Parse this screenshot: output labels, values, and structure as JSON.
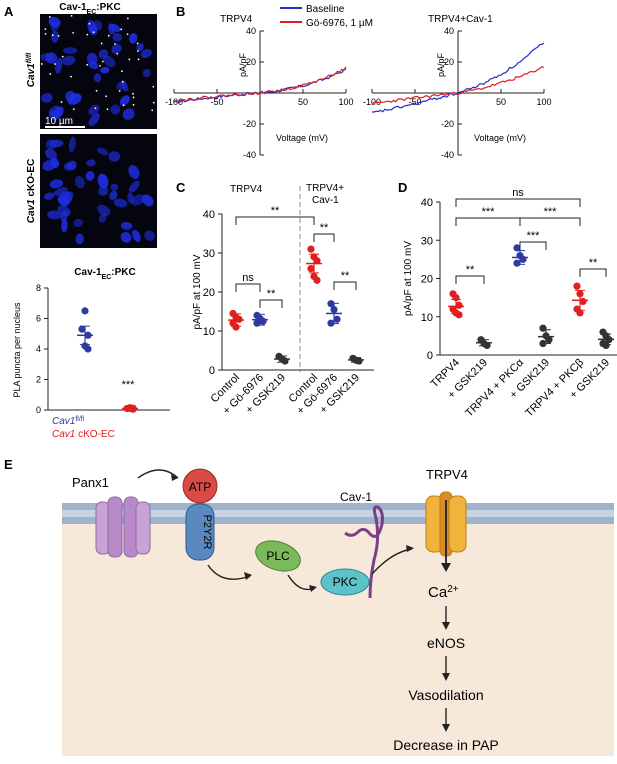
{
  "panels": {
    "A": {
      "letter": "A",
      "title_main": "Cav-1",
      "title_sub": "EC",
      "title_tail": ":PKC",
      "row1_label": "Cav1",
      "row1_sup": "fl/fl",
      "row2_label_italic": "Cav1",
      "row2_label_rest": " cKO-EC",
      "scale_bar": "10 µm",
      "plot": {
        "title_main": "Cav-1",
        "title_sub": "EC",
        "title_tail": ":PKC",
        "ylabel": "PLA puncta per nucleus",
        "yticks": [
          "0",
          "2",
          "4",
          "6",
          "8"
        ],
        "significance": "***",
        "legend": [
          {
            "italic": "Cav1",
            "sup": "fl/fl",
            "rest": "",
            "color": "#2e3a9f"
          },
          {
            "italic": "Cav1",
            "sup": "",
            "rest": " cKO-EC",
            "color": "#e02020"
          }
        ]
      }
    },
    "B": {
      "letter": "B",
      "legend": [
        {
          "name": "Baseline",
          "color": "#1f2fc8"
        },
        {
          "name": "Gö-6976, 1 µM",
          "color": "#e01e1e"
        }
      ],
      "left_title": "TRPV4",
      "right_title": "TRPV4+Cav-1",
      "ylabel": "pA/pF",
      "xlabel": "Voltage (mV)",
      "xticks": [
        "-100",
        "-50",
        "50",
        "100"
      ],
      "yticks": [
        "40",
        "20",
        "-20",
        "-40"
      ]
    },
    "C": {
      "letter": "C",
      "group1": "TRPV4",
      "group2_line1": "TRPV4+",
      "group2_line2": "Cav-1",
      "ylabel": "pA/pF at 100 mV",
      "yticks": [
        "0",
        "10",
        "20",
        "30",
        "40"
      ],
      "xlabels": [
        "Control",
        "+ Gö-6976",
        "+ GSK219",
        "Control",
        "+ Gö-6976",
        "+ GSK219"
      ],
      "sig": [
        "**",
        "ns",
        "**",
        "**",
        "**"
      ]
    },
    "D": {
      "letter": "D",
      "ylabel": "pA/pF at 100 mV",
      "yticks": [
        "0",
        "10",
        "20",
        "30",
        "40"
      ],
      "xlabels": [
        "TRPV4",
        "+ GSK219",
        "TRPV4 + PKCα",
        "+ GSK219",
        "TRPV4 + PKCβ",
        "+ GSK219"
      ],
      "sig": [
        "ns",
        "***",
        "***",
        "***",
        "**",
        "**"
      ]
    },
    "E": {
      "letter": "E",
      "labels": {
        "panx1": "Panx1",
        "atp": "ATP",
        "p2y2r": "P2Y2R",
        "plc": "PLC",
        "pkc": "PKC",
        "cav1": "Cav-1",
        "trpv4": "TRPV4",
        "ca": "Ca",
        "ca_sup": "2+",
        "enos": "eNOS",
        "vasodilation": "Vasodilation",
        "decrease": "Decrease in PAP"
      }
    }
  },
  "chart_data": [
    {
      "type": "scatter",
      "panel": "A",
      "categories": [
        "Cav1fl/fl",
        "Cav1 cKO-EC"
      ],
      "series": [
        {
          "values": [
            6.5,
            5.3,
            4.9,
            4.2,
            4.0
          ],
          "mean": 4.9,
          "sem": 0.6,
          "color": "#2e3a9f"
        },
        {
          "values": [
            0.15,
            0.1,
            0.05,
            0.1,
            0.12
          ],
          "mean": 0.1,
          "sem": 0.03,
          "color": "#e02020"
        }
      ],
      "ylabel": "PLA puncta per nucleus",
      "ylim": [
        0,
        8
      ]
    },
    {
      "type": "line",
      "panel": "B-left",
      "title": "TRPV4",
      "xlabel": "Voltage (mV)",
      "ylabel": "pA/pF",
      "xlim": [
        -100,
        100
      ],
      "ylim": [
        -40,
        40
      ],
      "series": [
        {
          "name": "Baseline",
          "x": [
            -100,
            -75,
            -50,
            -25,
            0,
            25,
            50,
            75,
            100
          ],
          "values": [
            -6,
            -4,
            -2.5,
            -1,
            0,
            1.8,
            4.5,
            9,
            15
          ]
        },
        {
          "name": "Gö-6976, 1 µM",
          "x": [
            -100,
            -75,
            -50,
            -25,
            0,
            25,
            50,
            75,
            100
          ],
          "values": [
            -5,
            -3.6,
            -2.2,
            -0.9,
            0,
            1.8,
            4.8,
            9.5,
            16
          ]
        }
      ]
    },
    {
      "type": "line",
      "panel": "B-right",
      "title": "TRPV4+Cav-1",
      "xlabel": "Voltage (mV)",
      "ylabel": "pA/pF",
      "xlim": [
        -100,
        100
      ],
      "ylim": [
        -40,
        40
      ],
      "series": [
        {
          "name": "Baseline",
          "x": [
            -100,
            -75,
            -50,
            -25,
            0,
            25,
            50,
            75,
            100
          ],
          "values": [
            -13,
            -10,
            -7,
            -3.5,
            0,
            5,
            12,
            21,
            33
          ]
        },
        {
          "name": "Gö-6976, 1 µM",
          "x": [
            -100,
            -75,
            -50,
            -25,
            0,
            25,
            50,
            75,
            100
          ],
          "values": [
            -7,
            -5,
            -3.2,
            -1.5,
            0,
            2.5,
            6.5,
            11,
            17
          ]
        }
      ]
    },
    {
      "type": "scatter",
      "panel": "C",
      "categories": [
        "Control",
        "+ Gö-6976",
        "+ GSK219",
        "Control",
        "+ Gö-6976",
        "+ GSK219"
      ],
      "series": [
        {
          "values": [
            14.5,
            13.5,
            13,
            12,
            11
          ],
          "mean": 12.8,
          "sem": 0.8,
          "color": "#e02020"
        },
        {
          "values": [
            14,
            13.2,
            12.5,
            12
          ],
          "mean": 12.9,
          "sem": 0.7,
          "color": "#2e3a9f"
        },
        {
          "values": [
            3.5,
            2.8,
            2.3
          ],
          "mean": 2.8,
          "sem": 0.4,
          "color": "#333333"
        },
        {
          "values": [
            31,
            29,
            28,
            26,
            24,
            23
          ],
          "mean": 27.3,
          "sem": 1.2,
          "color": "#e02020"
        },
        {
          "values": [
            17,
            15.5,
            13,
            12
          ],
          "mean": 14.5,
          "sem": 1.3,
          "color": "#2e3a9f"
        },
        {
          "values": [
            3,
            2.5,
            2.3
          ],
          "mean": 2.6,
          "sem": 0.3,
          "color": "#333333"
        }
      ],
      "ylabel": "pA/pF at 100 mV",
      "ylim": [
        0,
        40
      ]
    },
    {
      "type": "scatter",
      "panel": "D",
      "categories": [
        "TRPV4",
        "+ GSK219",
        "TRPV4 + PKCα",
        "+ GSK219",
        "TRPV4 + PKCβ",
        "+ GSK219"
      ],
      "series": [
        {
          "values": [
            16,
            15,
            13,
            12,
            11,
            10.5
          ],
          "mean": 12.7,
          "sem": 0.9,
          "color": "#e02020"
        },
        {
          "values": [
            4,
            3,
            2.5
          ],
          "mean": 3.2,
          "sem": 0.4,
          "color": "#333333"
        },
        {
          "values": [
            28,
            26,
            25,
            24
          ],
          "mean": 25.5,
          "sem": 0.9,
          "color": "#2e3a9f"
        },
        {
          "values": [
            7,
            5,
            4,
            3
          ],
          "mean": 4.8,
          "sem": 0.9,
          "color": "#333333"
        },
        {
          "values": [
            18,
            16,
            14,
            12,
            11
          ],
          "mean": 14.3,
          "sem": 1.3,
          "color": "#e02020"
        },
        {
          "values": [
            6,
            5,
            4,
            3,
            2.5
          ],
          "mean": 4.1,
          "sem": 0.7,
          "color": "#333333"
        }
      ],
      "ylabel": "pA/pF at 100 mV",
      "ylim": [
        0,
        40
      ]
    }
  ]
}
